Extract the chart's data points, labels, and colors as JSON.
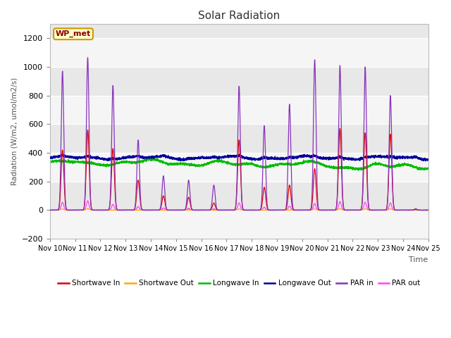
{
  "title": "Solar Radiation",
  "xlabel": "Time",
  "ylabel": "Radiation (W/m2, umol/m2/s)",
  "ylim": [
    -200,
    1300
  ],
  "yticks": [
    -200,
    0,
    200,
    400,
    600,
    800,
    1000,
    1200
  ],
  "plot_bg_color": "#e8e8e8",
  "grid_color": "#ffffff",
  "legend_label": "WP_met",
  "series_colors": {
    "sw_in": "#dd0000",
    "sw_out": "#ffaa00",
    "lw_in": "#00bb00",
    "lw_out": "#000099",
    "par_in": "#8833bb",
    "par_out": "#ff44ff"
  },
  "n_days": 15,
  "start_day": 10,
  "seed": 42,
  "figsize": [
    6.4,
    4.8
  ],
  "dpi": 100
}
